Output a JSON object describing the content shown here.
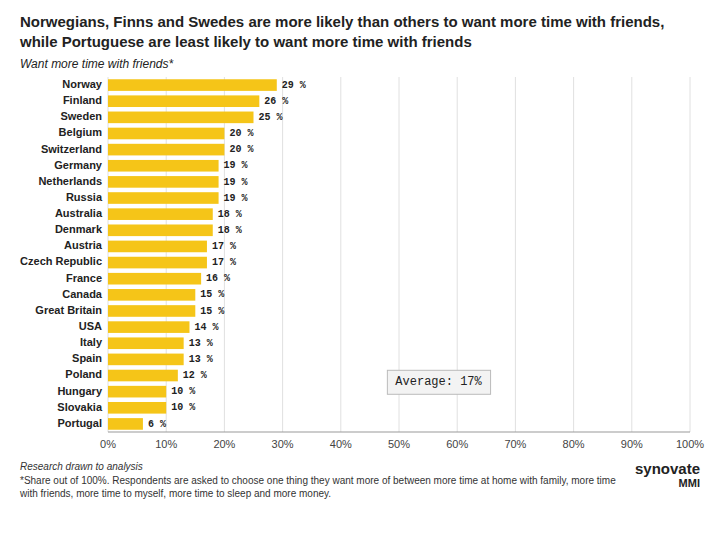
{
  "chart_data": {
    "type": "bar",
    "orientation": "horizontal",
    "title": "Norwegians, Finns and Swedes are more likely than others to want more time with friends, while Portuguese are least likely to want more time with friends",
    "subtitle": "Want more time with friends*",
    "categories": [
      "Norway",
      "Finland",
      "Sweden",
      "Belgium",
      "Switzerland",
      "Germany",
      "Netherlands",
      "Russia",
      "Australia",
      "Denmark",
      "Austria",
      "Czech Republic",
      "France",
      "Canada",
      "Great Britain",
      "USA",
      "Italy",
      "Spain",
      "Poland",
      "Hungary",
      "Slovakia",
      "Portugal"
    ],
    "values": [
      29,
      26,
      25,
      20,
      20,
      19,
      19,
      19,
      18,
      18,
      17,
      17,
      16,
      15,
      15,
      14,
      13,
      13,
      12,
      10,
      10,
      6
    ],
    "value_labels": [
      "29 %",
      "26 %",
      "25 %",
      "20 %",
      "20 %",
      "19 %",
      "19 %",
      "19 %",
      "18 %",
      "18 %",
      "17 %",
      "17 %",
      "16 %",
      "15 %",
      "15 %",
      "14 %",
      "13 %",
      "13 %",
      "12 %",
      "10 %",
      "10 %",
      "6 %"
    ],
    "data_labels": true,
    "color": "#F5C518",
    "xlim": [
      0,
      100
    ],
    "xticks": [
      {
        "value": 0,
        "label": "0%"
      },
      {
        "value": 10,
        "label": "10%"
      },
      {
        "value": 20,
        "label": "20%"
      },
      {
        "value": 30,
        "label": "30%"
      },
      {
        "value": 40,
        "label": "40%"
      },
      {
        "value": 50,
        "label": "50%"
      },
      {
        "value": 60,
        "label": "60%"
      },
      {
        "value": 70,
        "label": "70%"
      },
      {
        "value": 80,
        "label": "80%"
      },
      {
        "value": 90,
        "label": "90%"
      },
      {
        "value": 100,
        "label": "100%"
      }
    ],
    "grid": true,
    "annotations": [
      "Average: 17%",
      "Research drawn to analysis",
      "*Share out of 100%. Respondents are asked to choose one thing they want more of between more time at home with family, more time with friends, more time to myself, more time to sleep and more money.",
      "synovate",
      "MMI"
    ]
  }
}
